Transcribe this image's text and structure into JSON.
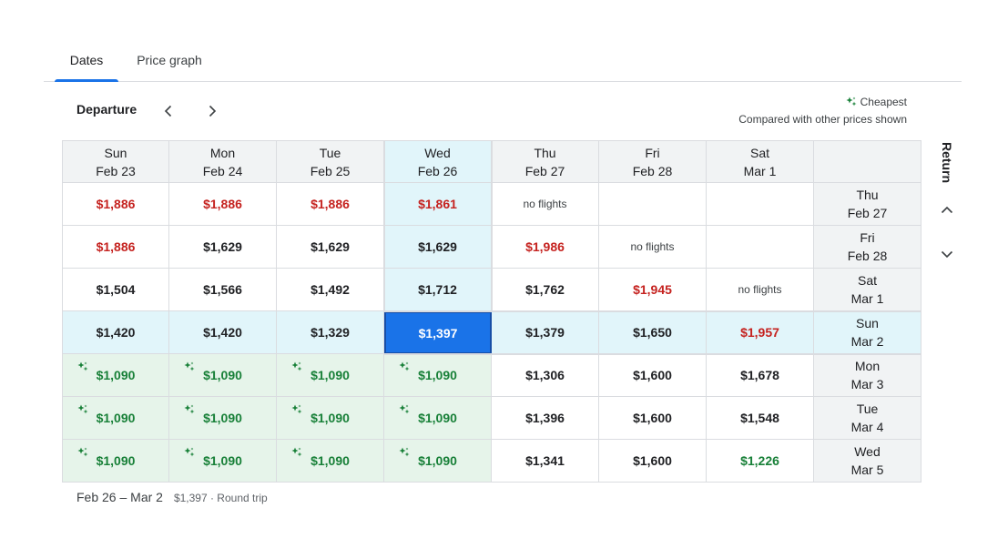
{
  "tabs": [
    {
      "label": "Dates",
      "active": true
    },
    {
      "label": "Price graph",
      "active": false
    }
  ],
  "departure_label": "Departure",
  "return_label": "Return",
  "legend": {
    "cheapest_label": "Cheapest",
    "note": "Compared with other prices shown",
    "icon": "sparkle-icon",
    "icon_color": "#188038"
  },
  "colors": {
    "accent": "#1a73e8",
    "cheapest_bg": "#e6f4ea",
    "cheapest_text": "#188038",
    "expensive_text": "#c5221f",
    "selected_bg": "#e1f5fa"
  },
  "departure_dates": [
    {
      "day": "Sun",
      "date": "Feb 23"
    },
    {
      "day": "Mon",
      "date": "Feb 24"
    },
    {
      "day": "Tue",
      "date": "Feb 25"
    },
    {
      "day": "Wed",
      "date": "Feb 26"
    },
    {
      "day": "Thu",
      "date": "Feb 27"
    },
    {
      "day": "Fri",
      "date": "Feb 28"
    },
    {
      "day": "Sat",
      "date": "Mar 1"
    }
  ],
  "return_dates": [
    {
      "day": "Thu",
      "date": "Feb 27"
    },
    {
      "day": "Fri",
      "date": "Feb 28"
    },
    {
      "day": "Sat",
      "date": "Mar 1"
    },
    {
      "day": "Sun",
      "date": "Mar 2"
    },
    {
      "day": "Mon",
      "date": "Mar 3"
    },
    {
      "day": "Tue",
      "date": "Mar 4"
    },
    {
      "day": "Wed",
      "date": "Mar 5"
    }
  ],
  "selected": {
    "departure_index": 3,
    "return_index": 3
  },
  "prices": [
    [
      {
        "v": "$1,886",
        "t": "expensive"
      },
      {
        "v": "$1,886",
        "t": "expensive"
      },
      {
        "v": "$1,886",
        "t": "expensive"
      },
      {
        "v": "$1,861",
        "t": "expensive"
      },
      {
        "v": "no flights",
        "t": "none"
      },
      {
        "v": "",
        "t": "empty"
      },
      {
        "v": "",
        "t": "empty"
      }
    ],
    [
      {
        "v": "$1,886",
        "t": "expensive"
      },
      {
        "v": "$1,629",
        "t": "normal"
      },
      {
        "v": "$1,629",
        "t": "normal"
      },
      {
        "v": "$1,629",
        "t": "normal"
      },
      {
        "v": "$1,986",
        "t": "expensive"
      },
      {
        "v": "no flights",
        "t": "none"
      },
      {
        "v": "",
        "t": "empty"
      }
    ],
    [
      {
        "v": "$1,504",
        "t": "normal"
      },
      {
        "v": "$1,566",
        "t": "normal"
      },
      {
        "v": "$1,492",
        "t": "normal"
      },
      {
        "v": "$1,712",
        "t": "normal"
      },
      {
        "v": "$1,762",
        "t": "normal"
      },
      {
        "v": "$1,945",
        "t": "expensive"
      },
      {
        "v": "no flights",
        "t": "none"
      }
    ],
    [
      {
        "v": "$1,420",
        "t": "normal"
      },
      {
        "v": "$1,420",
        "t": "normal"
      },
      {
        "v": "$1,329",
        "t": "normal"
      },
      {
        "v": "$1,397",
        "t": "normal"
      },
      {
        "v": "$1,379",
        "t": "normal"
      },
      {
        "v": "$1,650",
        "t": "normal"
      },
      {
        "v": "$1,957",
        "t": "expensive"
      }
    ],
    [
      {
        "v": "$1,090",
        "t": "cheapest"
      },
      {
        "v": "$1,090",
        "t": "cheapest"
      },
      {
        "v": "$1,090",
        "t": "cheapest"
      },
      {
        "v": "$1,090",
        "t": "cheapest"
      },
      {
        "v": "$1,306",
        "t": "normal"
      },
      {
        "v": "$1,600",
        "t": "normal"
      },
      {
        "v": "$1,678",
        "t": "normal"
      }
    ],
    [
      {
        "v": "$1,090",
        "t": "cheapest"
      },
      {
        "v": "$1,090",
        "t": "cheapest"
      },
      {
        "v": "$1,090",
        "t": "cheapest"
      },
      {
        "v": "$1,090",
        "t": "cheapest"
      },
      {
        "v": "$1,396",
        "t": "normal"
      },
      {
        "v": "$1,600",
        "t": "normal"
      },
      {
        "v": "$1,548",
        "t": "normal"
      }
    ],
    [
      {
        "v": "$1,090",
        "t": "cheapest"
      },
      {
        "v": "$1,090",
        "t": "cheapest"
      },
      {
        "v": "$1,090",
        "t": "cheapest"
      },
      {
        "v": "$1,090",
        "t": "cheapest"
      },
      {
        "v": "$1,341",
        "t": "normal"
      },
      {
        "v": "$1,600",
        "t": "normal"
      },
      {
        "v": "$1,226",
        "t": "low"
      }
    ]
  ],
  "footer": {
    "dates": "Feb 26 – Mar 2",
    "price": "$1,397 · Round trip"
  }
}
